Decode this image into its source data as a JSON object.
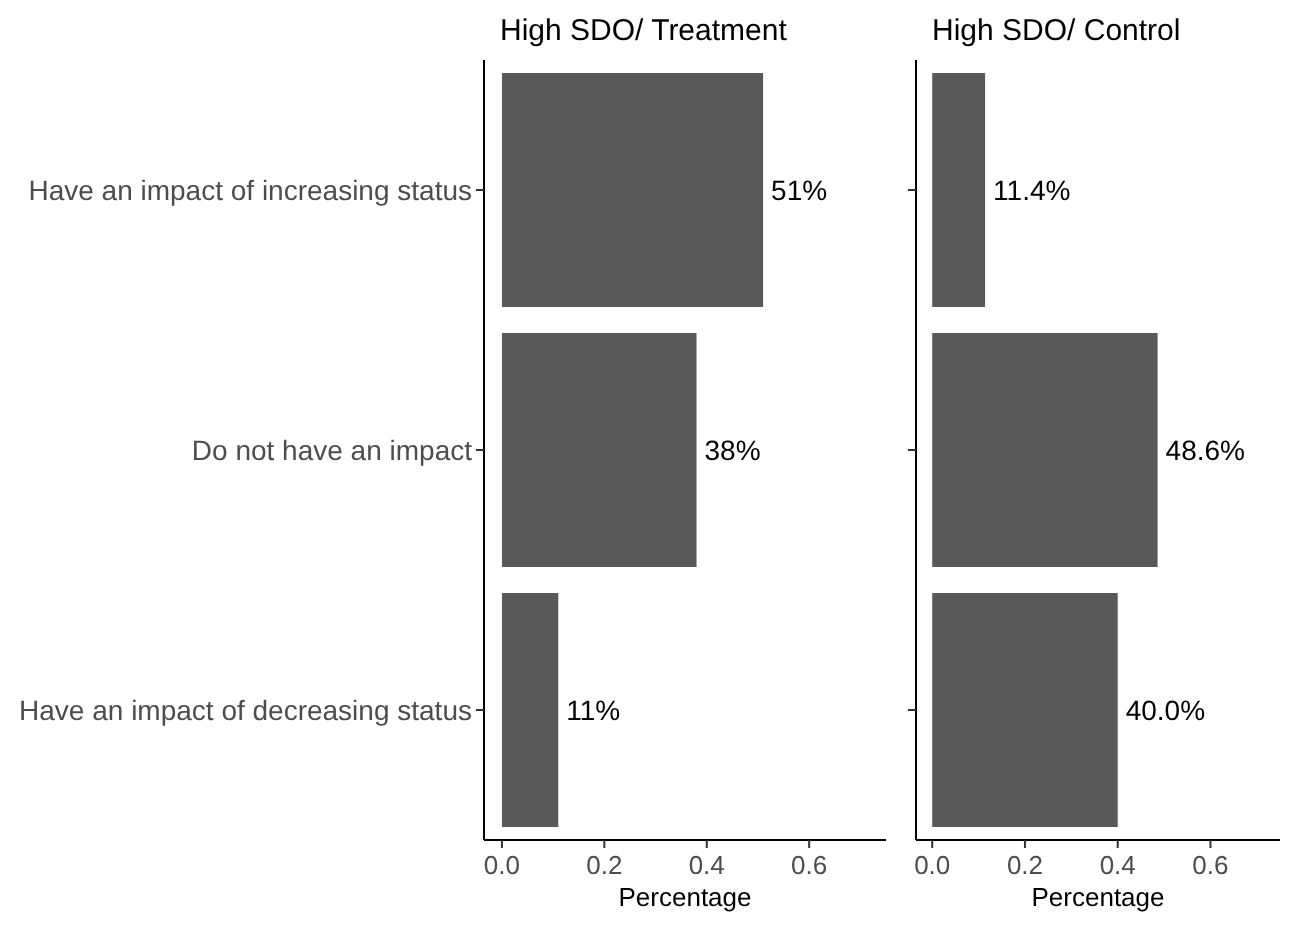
{
  "chart_data": [
    {
      "type": "bar",
      "orientation": "horizontal",
      "title": "High SDO/ Treatment",
      "xlabel": "Percentage",
      "categories": [
        "Have an impact of increasing status",
        "Do not have an impact",
        "Have an impact of decreasing status"
      ],
      "values": [
        0.51,
        0.38,
        0.11
      ],
      "value_labels": [
        "51%",
        "38%",
        "11%"
      ],
      "color": "#595959",
      "xlim": [
        -0.035,
        0.75
      ],
      "xticks": [
        {
          "value": 0,
          "label": "0.0"
        },
        {
          "value": 0.2,
          "label": "0.2"
        },
        {
          "value": 0.4,
          "label": "0.4"
        },
        {
          "value": 0.6,
          "label": "0.6"
        }
      ],
      "grid": false
    },
    {
      "type": "bar",
      "orientation": "horizontal",
      "title": "High SDO/ Control",
      "xlabel": "Percentage",
      "categories": [
        null,
        null,
        null
      ],
      "values": [
        0.114,
        0.486,
        0.4
      ],
      "value_labels": [
        "11.4%",
        "48.6%",
        "40.0%"
      ],
      "color": "#595959",
      "xlim": [
        -0.035,
        0.75
      ],
      "xticks": [
        {
          "value": 0,
          "label": "0.0"
        },
        {
          "value": 0.2,
          "label": "0.2"
        },
        {
          "value": 0.4,
          "label": "0.4"
        },
        {
          "value": 0.6,
          "label": "0.6"
        }
      ],
      "grid": false,
      "tick_labels": "x"
    }
  ]
}
